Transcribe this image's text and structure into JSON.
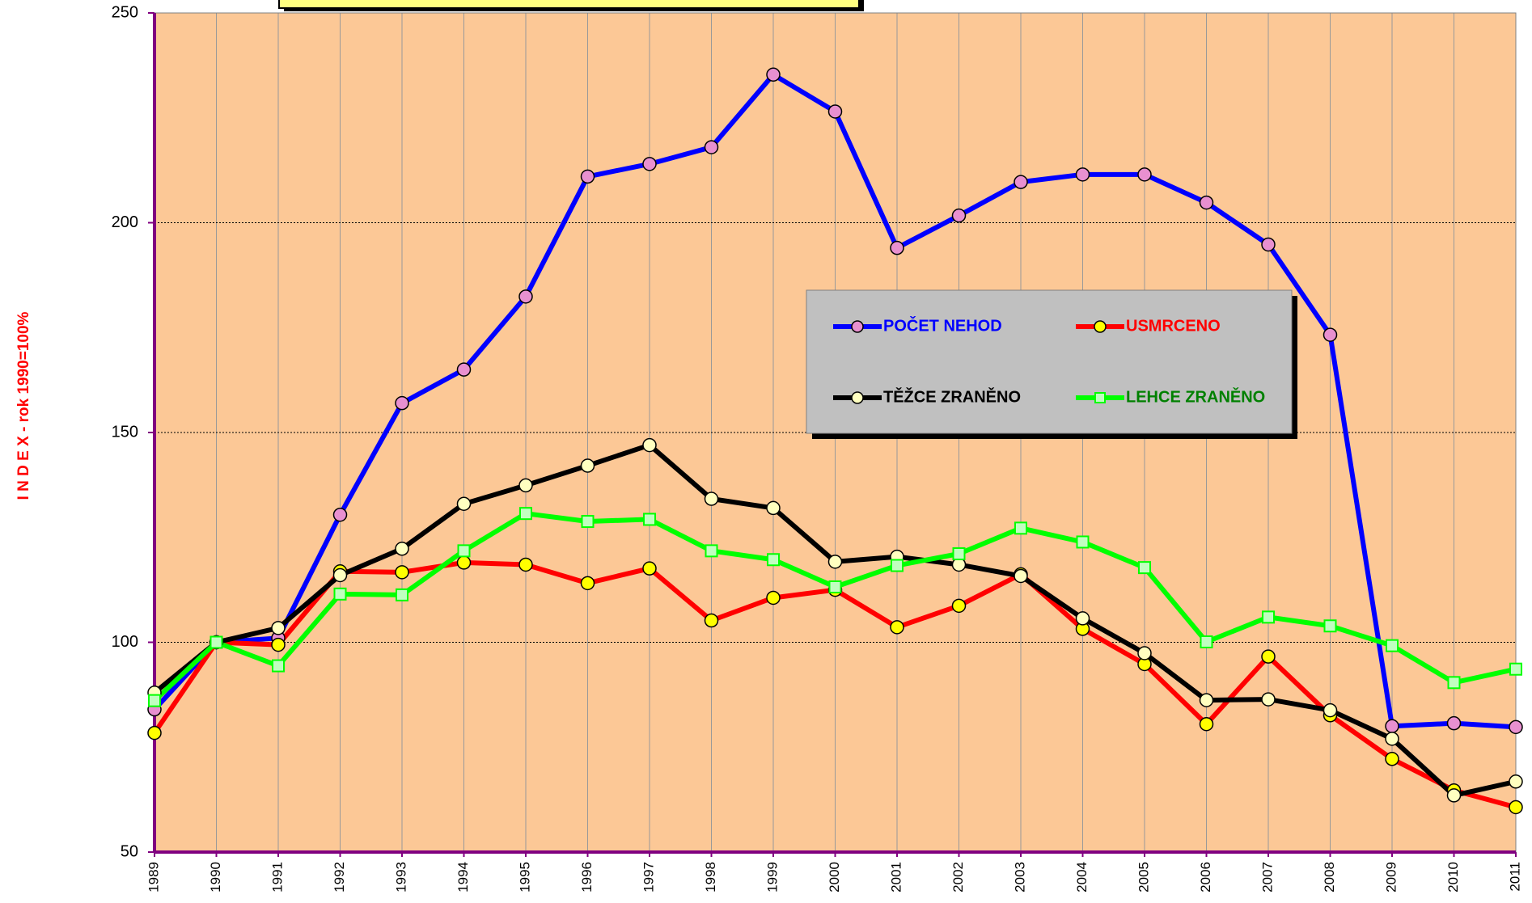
{
  "chart_data": {
    "type": "line",
    "y_label": "I N D E X - rok 1990=100%",
    "categories": [
      "1989",
      "1990",
      "1991",
      "1992",
      "1993",
      "1994",
      "1995",
      "1996",
      "1997",
      "1998",
      "1999",
      "2000",
      "2001",
      "2002",
      "2003",
      "2004",
      "2005",
      "2006",
      "2007",
      "2008",
      "2009",
      "2010",
      "2011"
    ],
    "ylim": [
      50,
      250
    ],
    "yticks": [
      50,
      100,
      150,
      200,
      250
    ],
    "grid": true,
    "series": [
      {
        "name": "POČET NEHOD",
        "color": "#0000ff",
        "marker": "circle",
        "marker_color": "#e890d0",
        "values": [
          84,
          100,
          101,
          130.4,
          157,
          165,
          182.4,
          211,
          214,
          218,
          235.3,
          226.5,
          194,
          201.7,
          209.7,
          211.5,
          211.5,
          204.8,
          194.8,
          173.3,
          80,
          80.7,
          79.8
        ]
      },
      {
        "name": "USMRCENO",
        "color": "#ff0000",
        "marker": "circle",
        "marker_color": "#ffff00",
        "values": [
          78.4,
          100,
          99.4,
          116.9,
          116.7,
          119,
          118.5,
          114.1,
          117.6,
          105.2,
          110.6,
          112.5,
          103.6,
          108.7,
          116.2,
          103.2,
          94.8,
          80.5,
          96.6,
          82.6,
          72.2,
          64.7,
          60.7
        ]
      },
      {
        "name": "TĚŽCE ZRANĚNO",
        "color": "#000000",
        "marker": "circle",
        "marker_color": "#ffffc0",
        "values": [
          88,
          100,
          103.4,
          116,
          122.3,
          133,
          137.4,
          142.1,
          147,
          134.2,
          132,
          119.2,
          120.4,
          118.5,
          115.8,
          105.7,
          97.4,
          86.2,
          86.4,
          83.8,
          77,
          63.5,
          66.8
        ]
      },
      {
        "name": "LEHCE ZRANĚNO",
        "color": "#00ff00",
        "marker": "square",
        "marker_color": "#c0ffc0",
        "values": [
          86.1,
          100,
          94.4,
          111.5,
          111.3,
          121.8,
          130.7,
          128.8,
          129.3,
          121.8,
          119.7,
          113.2,
          118.3,
          121.1,
          127.2,
          123.9,
          117.8,
          100.1,
          106,
          103.9,
          99.2,
          90.4,
          93.6
        ]
      }
    ]
  }
}
